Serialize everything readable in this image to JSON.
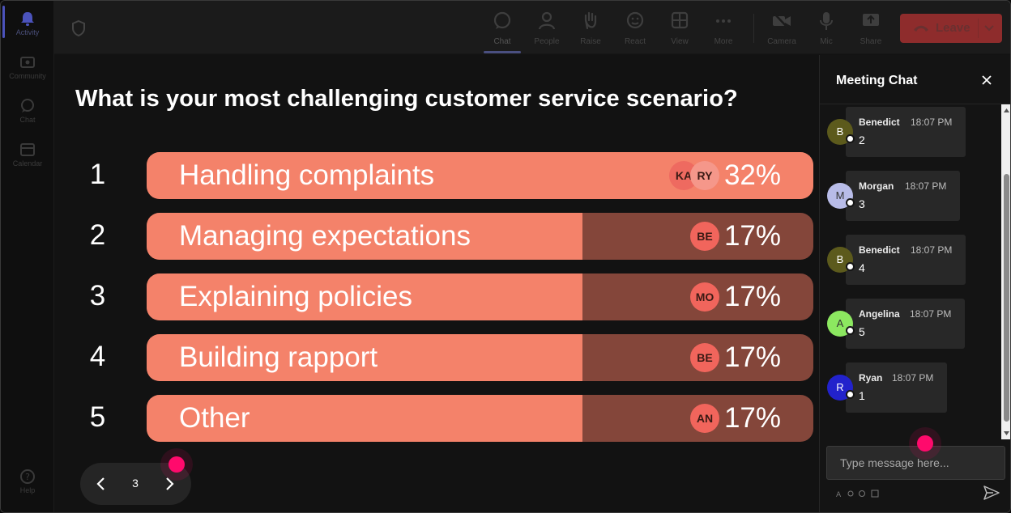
{
  "rail": {
    "items": [
      {
        "label": "Activity",
        "icon": "bell-icon"
      },
      {
        "label": "Community",
        "icon": "community-icon"
      },
      {
        "label": "Chat",
        "icon": "chat-icon"
      },
      {
        "label": "Calendar",
        "icon": "calendar-icon"
      }
    ],
    "help_label": "Help"
  },
  "toolbar": {
    "items": [
      {
        "label": "Chat",
        "icon": "chat-bubble-icon"
      },
      {
        "label": "People",
        "icon": "person-icon"
      },
      {
        "label": "Raise",
        "icon": "raise-hand-icon"
      },
      {
        "label": "React",
        "icon": "smiley-icon"
      },
      {
        "label": "View",
        "icon": "grid-icon"
      },
      {
        "label": "More",
        "icon": "more-dots-icon"
      },
      {
        "label": "Camera",
        "icon": "camera-off-icon"
      },
      {
        "label": "Mic",
        "icon": "mic-icon"
      },
      {
        "label": "Share",
        "icon": "share-icon"
      }
    ],
    "leave_label": "Leave"
  },
  "poll": {
    "question": "What is your most challenging customer service scenario?",
    "options": [
      {
        "number": "1",
        "label": "Handling complaints",
        "percent": "32%",
        "fill": 1.0,
        "voters": [
          "KA",
          "RY"
        ]
      },
      {
        "number": "2",
        "label": "Managing expectations",
        "percent": "17%",
        "fill": 0.654,
        "voters": [
          "BE"
        ]
      },
      {
        "number": "3",
        "label": "Explaining policies",
        "percent": "17%",
        "fill": 0.654,
        "voters": [
          "MO"
        ]
      },
      {
        "number": "4",
        "label": "Building rapport",
        "percent": "17%",
        "fill": 0.654,
        "voters": [
          "BE"
        ]
      },
      {
        "number": "5",
        "label": "Other",
        "percent": "17%",
        "fill": 0.654,
        "voters": [
          "AN"
        ]
      }
    ]
  },
  "pager": {
    "page": "3"
  },
  "chat": {
    "title": "Meeting Chat",
    "messages": [
      {
        "initial": "B",
        "name": "Benedict",
        "time": "18:07 PM",
        "text": "2",
        "avatar_color": "#5c5a1c"
      },
      {
        "initial": "M",
        "name": "Morgan",
        "time": "18:07 PM",
        "text": "3",
        "avatar_color": "#b8bce8"
      },
      {
        "initial": "B",
        "name": "Benedict",
        "time": "18:07 PM",
        "text": "4",
        "avatar_color": "#5c5a1c"
      },
      {
        "initial": "A",
        "name": "Angelina",
        "time": "18:07 PM",
        "text": "5",
        "avatar_color": "#8ce860"
      },
      {
        "initial": "R",
        "name": "Ryan",
        "time": "18:07 PM",
        "text": "1",
        "avatar_color": "#2222cc"
      }
    ],
    "input_placeholder": "Type message here..."
  },
  "colors": {
    "bar_fill": "#f4826a",
    "bar_track": "#84463a",
    "bubble": "#f1655c",
    "leave": "#8e2c2c",
    "cursor": "#ff0a6c"
  }
}
